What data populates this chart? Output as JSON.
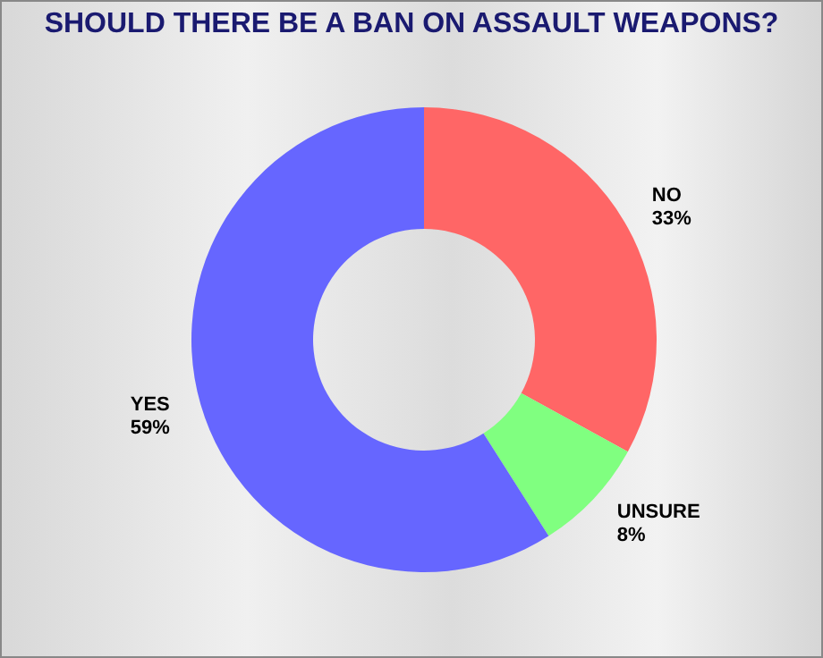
{
  "chart_data": {
    "type": "donut",
    "title": "SHOULD THERE BE A BAN ON ASSAULT WEAPONS?",
    "categories": [
      "NO",
      "UNSURE",
      "YES"
    ],
    "values": [
      33,
      8,
      59
    ],
    "value_labels": [
      "33%",
      "8%",
      "59%"
    ],
    "colors": [
      "#ff6666",
      "#80ff80",
      "#6666ff"
    ],
    "legend": false
  }
}
